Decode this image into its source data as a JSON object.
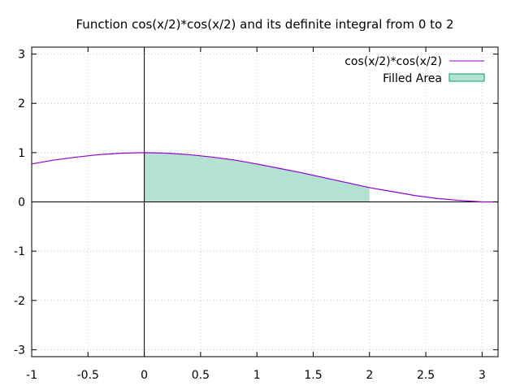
{
  "chart_data": {
    "type": "line",
    "title": "Function cos(x/2)*cos(x/2) and its definite integral from 0 to 2",
    "xlabel": "",
    "ylabel": "",
    "xlim": [
      -1,
      3.14159
    ],
    "ylim": [
      -3.14159,
      3.14159
    ],
    "x_ticks": [
      -1,
      -0.5,
      0,
      0.5,
      1,
      1.5,
      2,
      2.5,
      3
    ],
    "x_tick_labels": [
      "-1",
      "-0.5",
      "0",
      "0.5",
      "1",
      "1.5",
      "2",
      "2.5",
      "3"
    ],
    "y_ticks": [
      -3,
      -2,
      -1,
      0,
      1,
      2,
      3
    ],
    "y_tick_labels": [
      "-3",
      "-2",
      "-1",
      "0",
      "1",
      "2",
      "3"
    ],
    "grid": true,
    "legend_position": "top-right",
    "series": [
      {
        "name": "cos(x/2)*cos(x/2)",
        "kind": "line",
        "color": "#9400d3",
        "x": [
          -1.0,
          -0.8,
          -0.6,
          -0.4,
          -0.2,
          0.0,
          0.2,
          0.4,
          0.6,
          0.8,
          1.0,
          1.2,
          1.4,
          1.6,
          1.8,
          2.0,
          2.2,
          2.4,
          2.6,
          2.8,
          3.0,
          3.14
        ],
        "y": [
          0.77,
          0.85,
          0.91,
          0.96,
          0.99,
          1.0,
          0.99,
          0.96,
          0.91,
          0.85,
          0.77,
          0.68,
          0.59,
          0.49,
          0.39,
          0.29,
          0.21,
          0.13,
          0.07,
          0.03,
          0.0,
          0.0
        ]
      },
      {
        "name": "Filled Area",
        "kind": "area",
        "color": "#b3e2d2",
        "edge_color": "#00a070",
        "x": [
          0.0,
          0.2,
          0.4,
          0.6,
          0.8,
          1.0,
          1.2,
          1.4,
          1.6,
          1.8,
          2.0
        ],
        "y": [
          1.0,
          0.99,
          0.96,
          0.91,
          0.85,
          0.77,
          0.68,
          0.59,
          0.49,
          0.39,
          0.29
        ]
      }
    ]
  }
}
